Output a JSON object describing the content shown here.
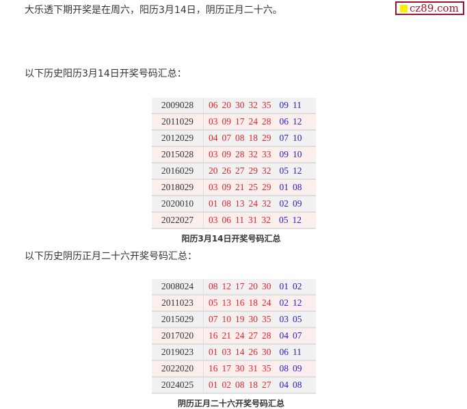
{
  "intro": "大乐透下期开奖是在周六，阳历3月14日，阴历正月二十六。",
  "logo": {
    "text": "cz89.com",
    "square_color": "#ffee00",
    "border_color": "#a0102a"
  },
  "solar": {
    "heading": "以下历史阳历3月14日开奖号码汇总：",
    "caption": "阳历3月14日开奖号码汇总",
    "rows": [
      {
        "id": "2009028",
        "red": [
          "06",
          "20",
          "30",
          "32",
          "35"
        ],
        "blue": [
          "09",
          "11"
        ]
      },
      {
        "id": "2011029",
        "red": [
          "03",
          "09",
          "17",
          "24",
          "28"
        ],
        "blue": [
          "06",
          "12"
        ]
      },
      {
        "id": "2012029",
        "red": [
          "04",
          "07",
          "08",
          "18",
          "29"
        ],
        "blue": [
          "07",
          "10"
        ]
      },
      {
        "id": "2015028",
        "red": [
          "03",
          "09",
          "28",
          "32",
          "33"
        ],
        "blue": [
          "09",
          "10"
        ]
      },
      {
        "id": "2016029",
        "red": [
          "20",
          "26",
          "27",
          "29",
          "32"
        ],
        "blue": [
          "05",
          "12"
        ]
      },
      {
        "id": "2018029",
        "red": [
          "03",
          "09",
          "21",
          "25",
          "29"
        ],
        "blue": [
          "01",
          "08"
        ]
      },
      {
        "id": "2020010",
        "red": [
          "01",
          "08",
          "13",
          "24",
          "32"
        ],
        "blue": [
          "02",
          "09"
        ]
      },
      {
        "id": "2022027",
        "red": [
          "03",
          "06",
          "11",
          "31",
          "32"
        ],
        "blue": [
          "05",
          "12"
        ]
      }
    ]
  },
  "lunar": {
    "heading": "以下历史阴历正月二十六开奖号码汇总：",
    "caption": "阴历正月二十六开奖号码汇总",
    "rows": [
      {
        "id": "2008024",
        "red": [
          "08",
          "12",
          "17",
          "20",
          "30"
        ],
        "blue": [
          "01",
          "02"
        ]
      },
      {
        "id": "2011023",
        "red": [
          "05",
          "13",
          "16",
          "18",
          "24"
        ],
        "blue": [
          "02",
          "12"
        ]
      },
      {
        "id": "2015029",
        "red": [
          "07",
          "10",
          "19",
          "30",
          "35"
        ],
        "blue": [
          "03",
          "05"
        ]
      },
      {
        "id": "2017020",
        "red": [
          "16",
          "21",
          "24",
          "27",
          "28"
        ],
        "blue": [
          "04",
          "07"
        ]
      },
      {
        "id": "2019023",
        "red": [
          "01",
          "03",
          "14",
          "26",
          "30"
        ],
        "blue": [
          "06",
          "11"
        ]
      },
      {
        "id": "2022020",
        "red": [
          "16",
          "17",
          "30",
          "31",
          "35"
        ],
        "blue": [
          "08",
          "09"
        ]
      },
      {
        "id": "2024025",
        "red": [
          "01",
          "02",
          "08",
          "18",
          "27"
        ],
        "blue": [
          "04",
          "08"
        ]
      }
    ]
  }
}
